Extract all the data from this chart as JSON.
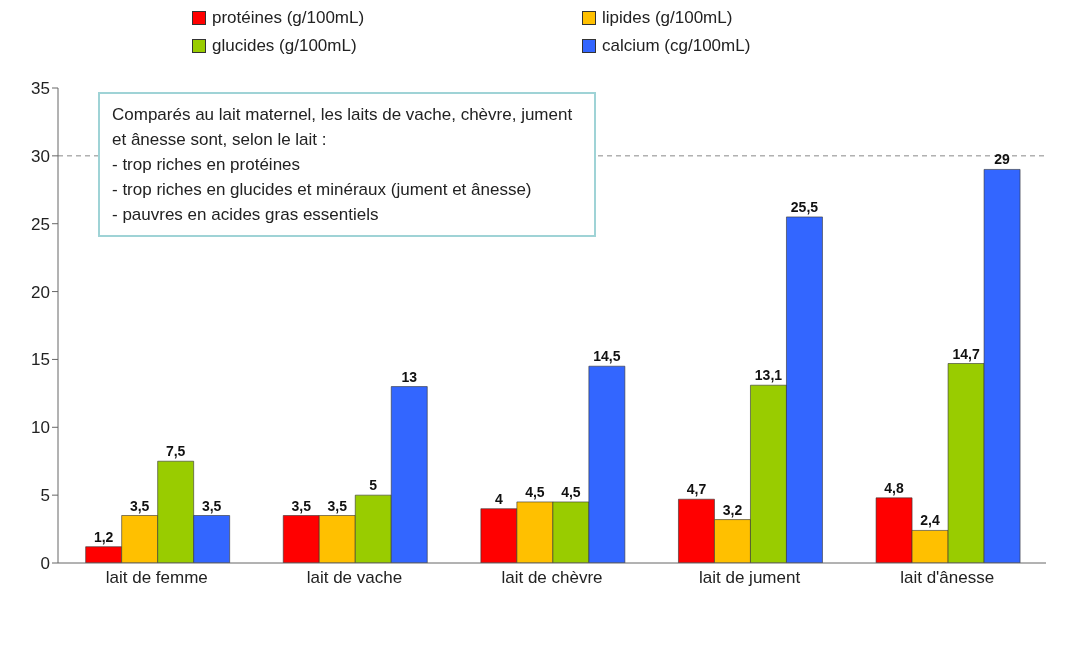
{
  "chart_data": {
    "type": "bar",
    "categories": [
      "lait de femme",
      "lait de vache",
      "lait de chèvre",
      "lait de jument",
      "lait d'ânesse"
    ],
    "series": [
      {
        "name": "protéines (g/100mL)",
        "color": "#ff0000",
        "values": [
          1.2,
          3.5,
          4,
          4.7,
          4.8
        ],
        "value_labels": [
          "1,2",
          "3,5",
          "4",
          "4,7",
          "4,8"
        ]
      },
      {
        "name": "lipides (g/100mL)",
        "color": "#ffc000",
        "values": [
          3.5,
          3.5,
          4.5,
          3.2,
          2.4
        ],
        "value_labels": [
          "3,5",
          "3,5",
          "4,5",
          "3,2",
          "2,4"
        ]
      },
      {
        "name": "glucides (g/100mL)",
        "color": "#99cc00",
        "values": [
          7.5,
          5,
          4.5,
          13.1,
          14.7
        ],
        "value_labels": [
          "7,5",
          "5",
          "4,5",
          "13,1",
          "14,7"
        ]
      },
      {
        "name": "calcium (cg/100mL)",
        "color": "#3366ff",
        "values": [
          3.5,
          13,
          14.5,
          25.5,
          29
        ],
        "value_labels": [
          "3,5",
          "13",
          "14,5",
          "25,5",
          "29"
        ]
      }
    ],
    "ylim": [
      0,
      35
    ],
    "yticks": [
      0,
      5,
      10,
      15,
      20,
      25,
      30,
      35
    ],
    "legend": "top",
    "ref_lines": [
      {
        "axis": "y",
        "value": 30,
        "line_style": "dashed",
        "color": "#888888"
      }
    ],
    "annotations": [
      "Comparés au lait maternel, les laits de vache, chèvre, jument et ânesse sont, selon le lait :",
      "- trop riches en protéines",
      "- trop riches en glucides et minéraux (jument et ânesse)",
      "- pauvres en acides gras essentiels"
    ]
  }
}
